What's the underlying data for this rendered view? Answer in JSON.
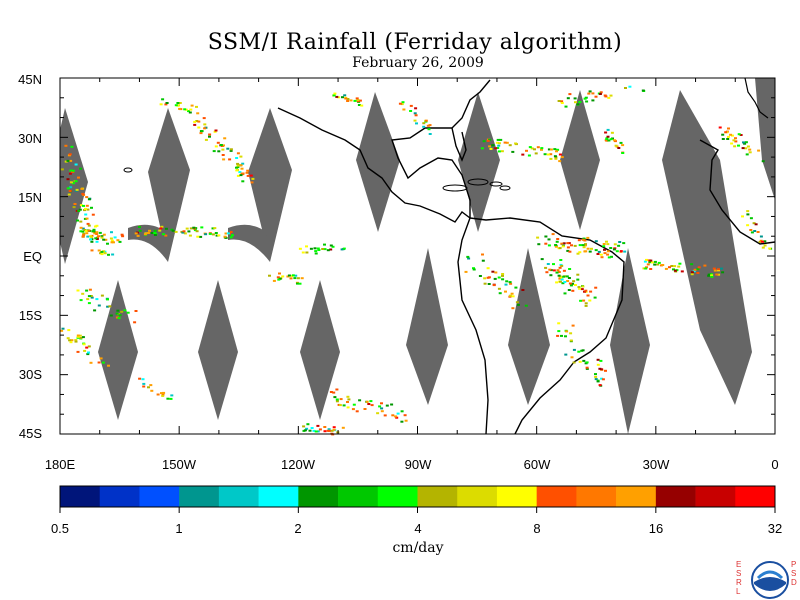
{
  "header": {
    "title": "SSM/I Rainfall (Ferriday algorithm)",
    "date": "February 26, 2009"
  },
  "map": {
    "lat_labels": [
      "45N",
      "30N",
      "15N",
      "EQ",
      "15S",
      "30S",
      "45S"
    ],
    "lon_labels": [
      "180E",
      "150W",
      "120W",
      "90W",
      "60W",
      "30W",
      "0"
    ],
    "lat_range": [
      -45,
      45
    ],
    "lon_range": [
      -180,
      0
    ],
    "no_data_color": "#666666",
    "land_outline_color": "#000000"
  },
  "colorbar": {
    "colors": [
      "#00157a",
      "#0032c8",
      "#0050ff",
      "#00968f",
      "#00c8c8",
      "#00ffff",
      "#009600",
      "#00c800",
      "#00ff00",
      "#b4b400",
      "#dcdc00",
      "#ffff00",
      "#ff5000",
      "#ff7800",
      "#ffa000",
      "#960000",
      "#c80000",
      "#ff0000"
    ],
    "tick_labels": [
      "0.5",
      "1",
      "2",
      "4",
      "8",
      "16",
      "32"
    ],
    "units": "cm/day"
  },
  "logo": {
    "left_letters": "E S R L",
    "right_letters": "P S D",
    "emblem": "noaa-emblem-icon"
  }
}
